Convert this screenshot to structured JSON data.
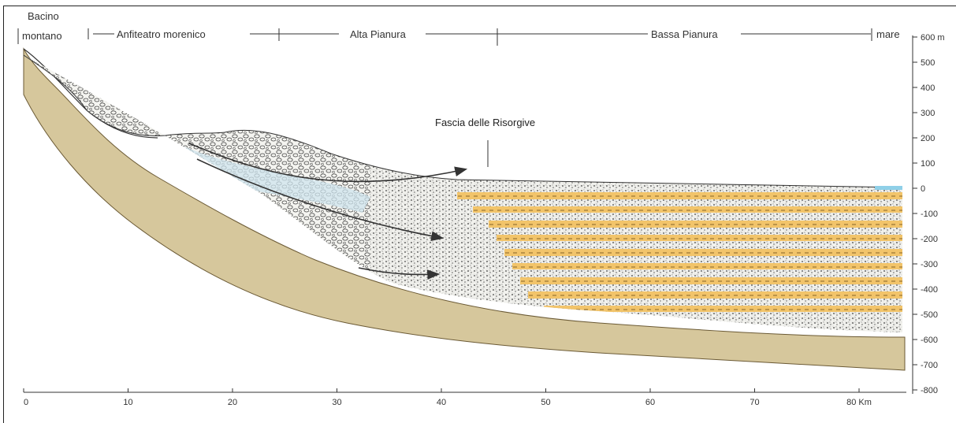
{
  "zones": [
    {
      "label_line1": "Bacino",
      "label_line2": "montano"
    },
    {
      "label": "Anfiteatro morenico"
    },
    {
      "label": "Alta Pianura"
    },
    {
      "label": "Bassa Pianura"
    },
    {
      "label": "mare"
    }
  ],
  "annotation": "Fascia delle Risorgive",
  "depth_axis": {
    "ticks": [
      "600 m",
      "500",
      "400",
      "300",
      "200",
      "100",
      "0",
      "-100",
      "-200",
      "-300",
      "-400",
      "-500",
      "-600",
      "-700",
      "-800"
    ]
  },
  "distance_axis": {
    "ticks": [
      "0",
      "10",
      "20",
      "30",
      "40",
      "50",
      "60",
      "70",
      "80 Km"
    ]
  },
  "colors": {
    "bedrock": "#d6c79c",
    "gravel": "#f2f2ee",
    "clay_layers": "#f2c46a",
    "aquifer": "#cfe4ee",
    "sea": "#8fd0e8",
    "arrow": "#333333"
  }
}
